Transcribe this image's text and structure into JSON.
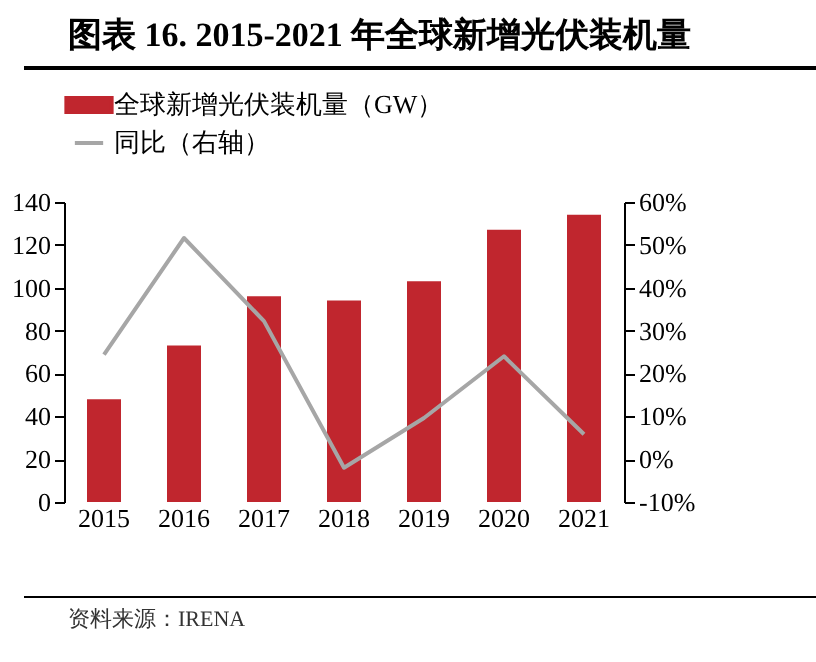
{
  "chart_data": {
    "type": "bar",
    "title": "图表 16. 2015-2021 年全球新增光伏装机量",
    "categories": [
      "2015",
      "2016",
      "2017",
      "2018",
      "2019",
      "2020",
      "2021"
    ],
    "series": [
      {
        "name": "全球新增光伏装机量（GW）",
        "color": "#c0262e",
        "values": [
          48,
          73,
          96,
          94,
          103,
          127,
          134
        ]
      },
      {
        "name": "同比（右轴）",
        "type": "line",
        "axis": "y2",
        "color": "#a6a6a6",
        "values": [
          24.4,
          51.6,
          32.2,
          -2,
          9.6,
          24,
          5.8
        ]
      }
    ],
    "ylim": [
      0,
      140
    ],
    "yticks": [
      0,
      20,
      40,
      60,
      80,
      100,
      120,
      140
    ],
    "y2lim": [
      -10,
      60
    ],
    "y2ticks": [
      {
        "value": -10,
        "label": "-10%"
      },
      {
        "value": 0,
        "label": "0%"
      },
      {
        "value": 10,
        "label": "10%"
      },
      {
        "value": 20,
        "label": "20%"
      },
      {
        "value": 30,
        "label": "30%"
      },
      {
        "value": 40,
        "label": "40%"
      },
      {
        "value": 50,
        "label": "50%"
      },
      {
        "value": 60,
        "label": "60%"
      }
    ],
    "legend": "top",
    "grid": false,
    "annotations": [
      "资料来源：IRENA"
    ]
  }
}
